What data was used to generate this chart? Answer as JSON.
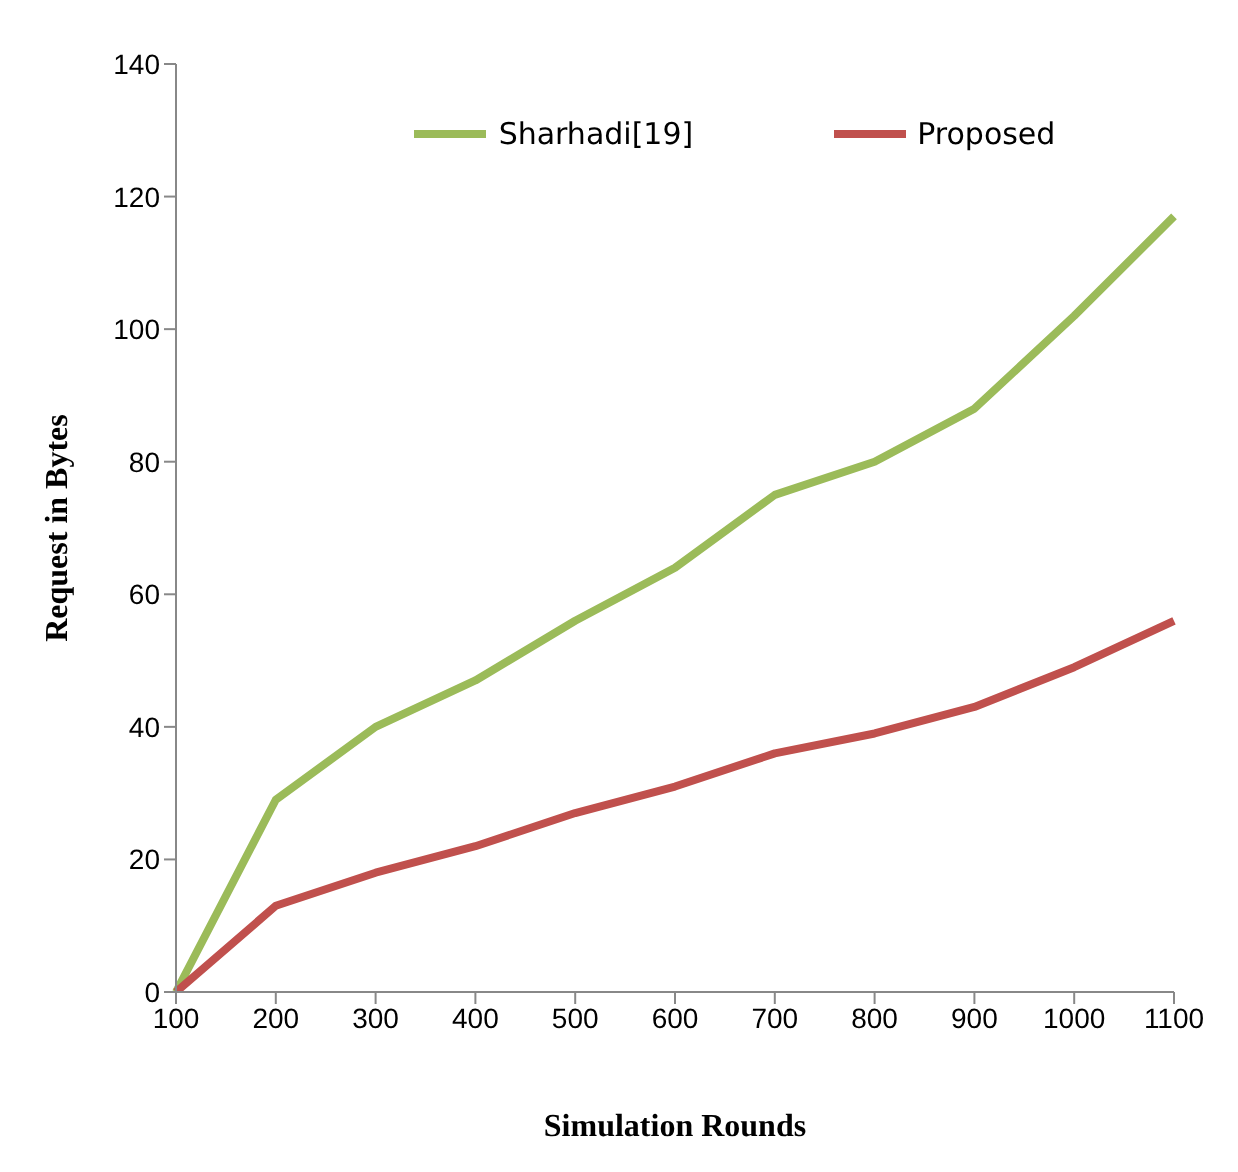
{
  "chart_data": {
    "type": "line",
    "xlabel": "Simulation Rounds",
    "ylabel": "Request in Bytes",
    "categories": [
      "100",
      "200",
      "300",
      "400",
      "500",
      "600",
      "700",
      "800",
      "900",
      "1000",
      "1100"
    ],
    "series": [
      {
        "name": "Sharhadi[19]",
        "color": "#9bbb59",
        "values": [
          0,
          29,
          40,
          47,
          56,
          64,
          75,
          80,
          88,
          102,
          117
        ]
      },
      {
        "name": "Proposed",
        "color": "#c0504d",
        "values": [
          0,
          13,
          18,
          22,
          27,
          31,
          36,
          39,
          43,
          49,
          56
        ]
      }
    ],
    "ylim": [
      0,
      140
    ],
    "yticks": [
      0,
      20,
      40,
      60,
      80,
      100,
      120,
      140
    ],
    "grid": false,
    "legend": "top",
    "marker": "none",
    "line_style": "solid"
  }
}
